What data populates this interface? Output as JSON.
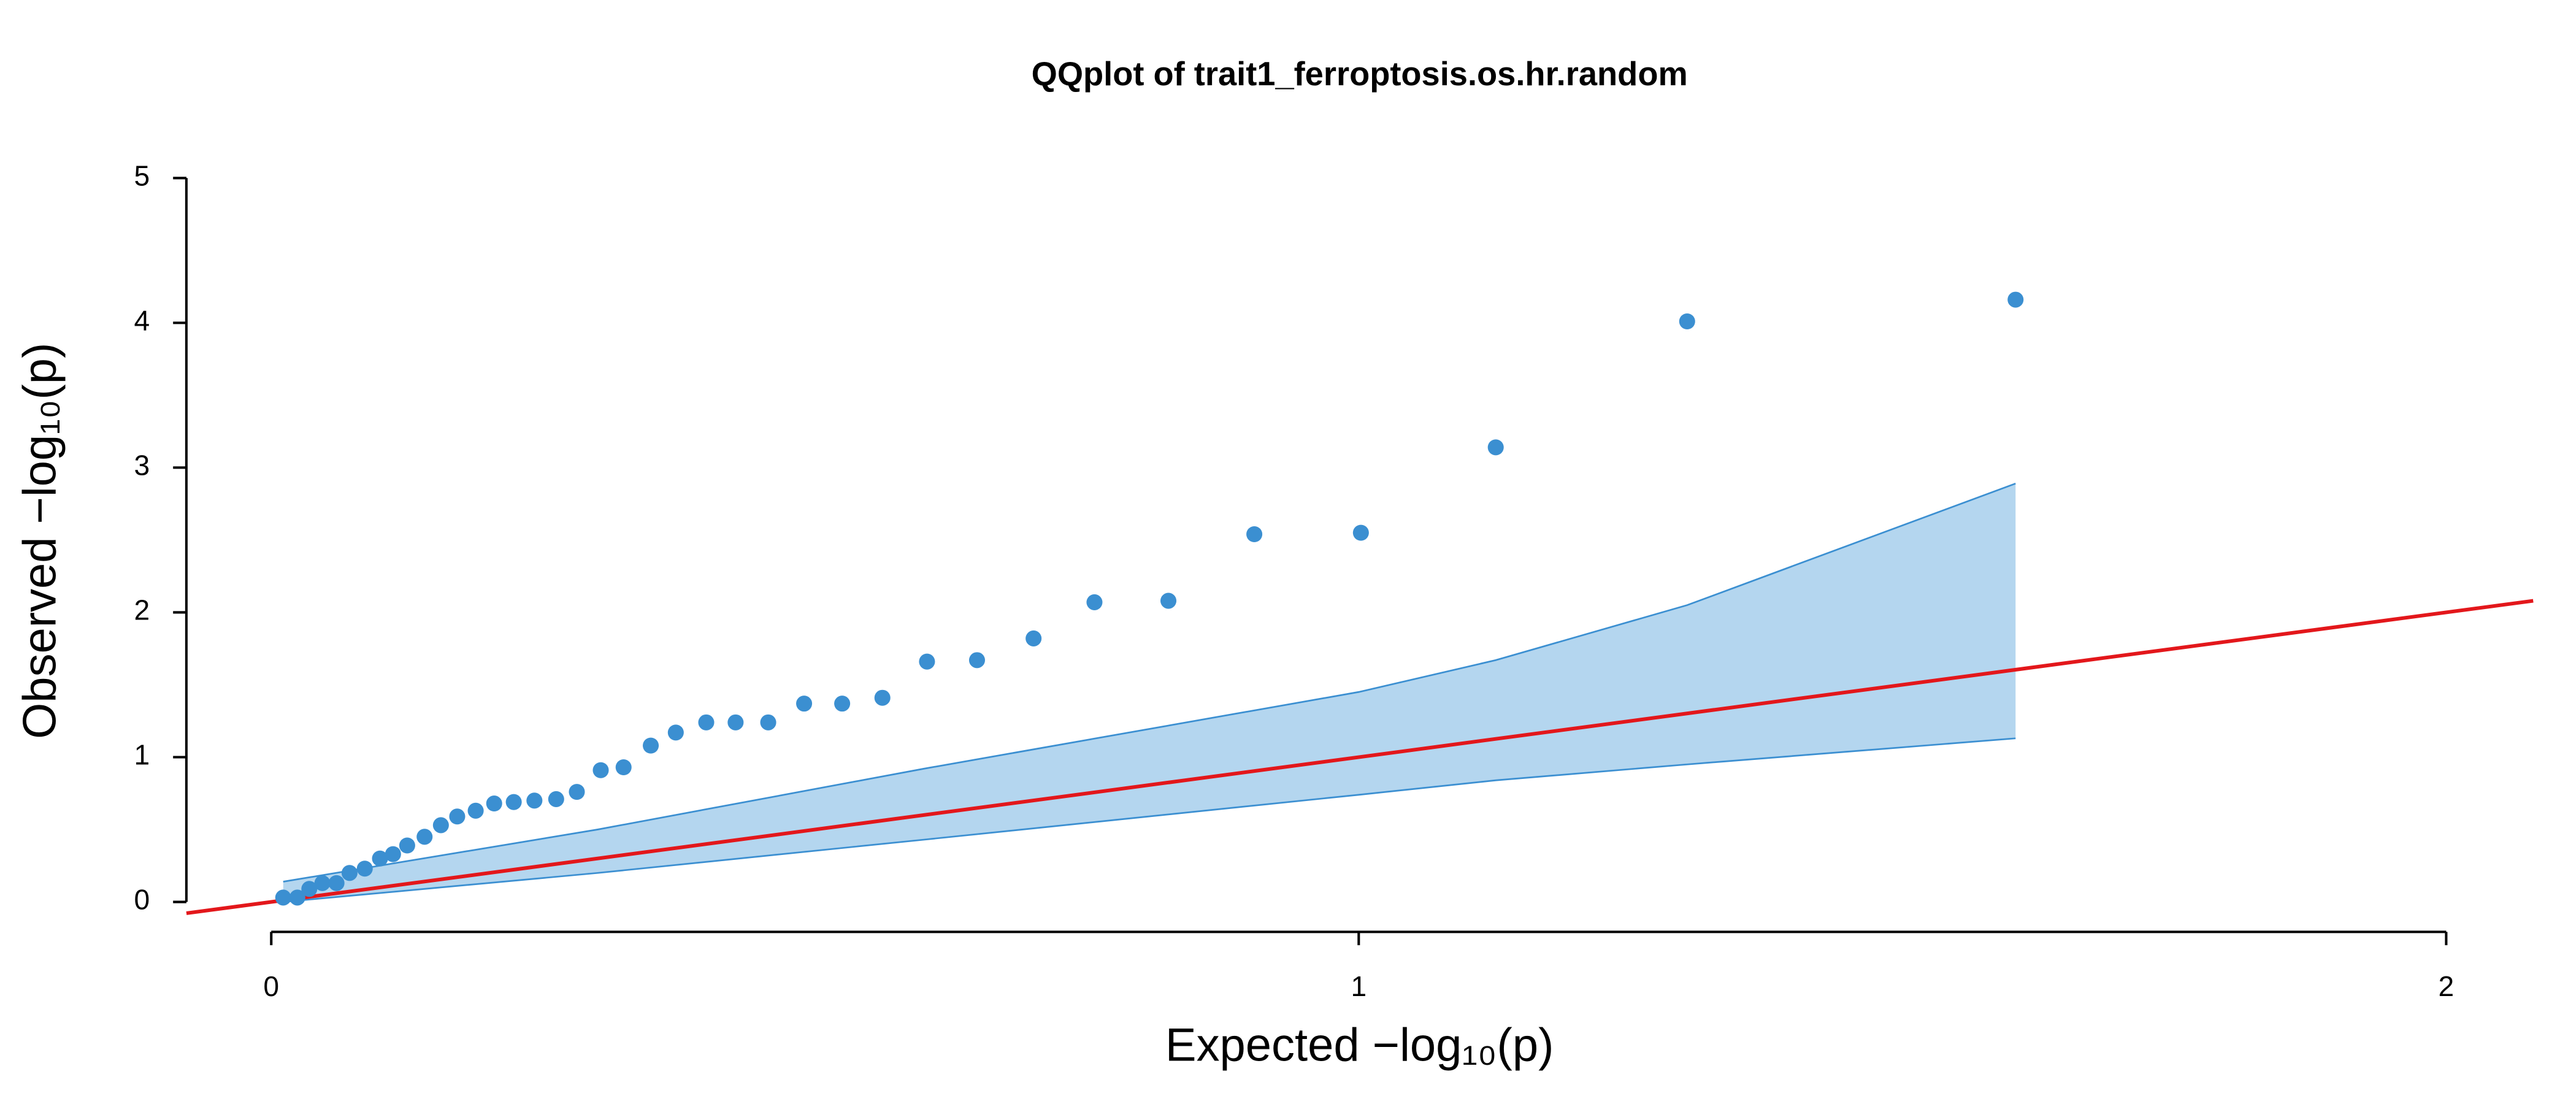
{
  "chart_data": {
    "type": "qq",
    "title": "QQplot of trait1_ferroptosis.os.hr.random",
    "xlabel": "Expected  −log₁₀(p)",
    "ylabel": "Observed  −log₁₀(p)",
    "x": [
      0.011,
      0.024,
      0.035,
      0.047,
      0.06,
      0.072,
      0.086,
      0.1,
      0.112,
      0.125,
      0.141,
      0.156,
      0.171,
      0.188,
      0.205,
      0.223,
      0.242,
      0.262,
      0.281,
      0.303,
      0.324,
      0.349,
      0.372,
      0.4,
      0.427,
      0.457,
      0.49,
      0.525,
      0.562,
      0.603,
      0.649,
      0.701,
      0.757,
      0.825,
      0.904,
      1.002,
      1.126,
      1.302,
      1.604
    ],
    "series": [
      {
        "color": "#3b8fd1",
        "values": [
          0.03,
          0.03,
          0.09,
          0.13,
          0.13,
          0.2,
          0.23,
          0.3,
          0.33,
          0.39,
          0.45,
          0.53,
          0.59,
          0.63,
          0.68,
          0.69,
          0.7,
          0.71,
          0.76,
          0.91,
          0.93,
          1.08,
          1.17,
          1.24,
          1.24,
          1.24,
          1.37,
          1.37,
          1.41,
          1.66,
          1.67,
          1.82,
          2.07,
          2.08,
          2.54,
          2.55,
          3.14,
          4.01,
          4.16
        ]
      }
    ],
    "band": {
      "x": [
        0.011,
        0.3,
        0.6,
        1.0,
        1.126,
        1.302,
        1.604
      ],
      "upper": [
        0.14,
        0.5,
        0.92,
        1.45,
        1.67,
        2.05,
        2.89
      ],
      "lower": [
        0.0,
        0.2,
        0.43,
        0.74,
        0.84,
        0.95,
        1.13
      ],
      "fill": "#b4d6ef",
      "stroke": "#3b8fd1"
    },
    "reference_line_color": "#e3171b",
    "xlim": [
      -0.078,
      2.08
    ],
    "ylim": [
      -0.09,
      5.0
    ],
    "xticks": [
      0,
      1,
      2
    ],
    "yticks": [
      0,
      1,
      2,
      3,
      4,
      5
    ]
  }
}
